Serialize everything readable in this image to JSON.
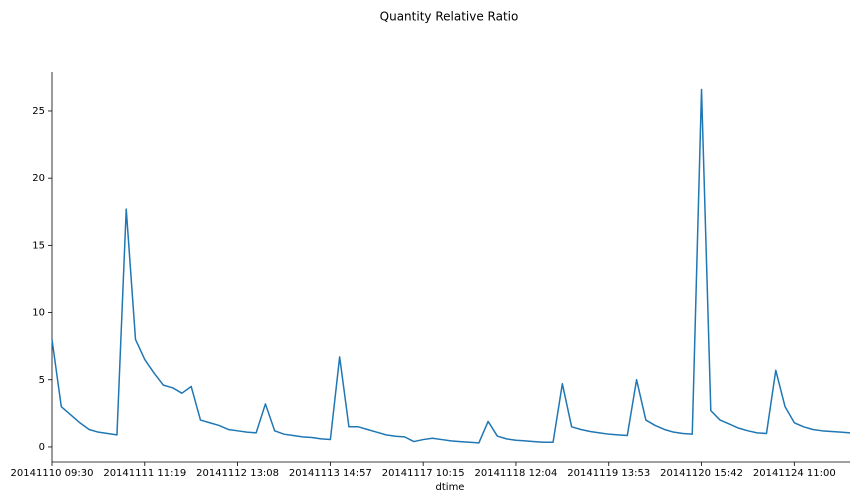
{
  "chart_data": {
    "type": "line",
    "title": "Quantity Relative Ratio",
    "x_label": "dtime",
    "categories": [
      "20141110 09:30",
      null,
      null,
      null,
      null,
      null,
      null,
      null,
      null,
      null,
      "20141111 11:19",
      null,
      null,
      null,
      null,
      null,
      null,
      null,
      null,
      null,
      "20141112 13:08",
      null,
      null,
      null,
      null,
      null,
      null,
      null,
      null,
      null,
      "20141113 14:57",
      null,
      null,
      null,
      null,
      null,
      null,
      null,
      null,
      null,
      "20141117 10:15",
      null,
      null,
      null,
      null,
      null,
      null,
      null,
      null,
      null,
      "20141118 12:04",
      null,
      null,
      null,
      null,
      null,
      null,
      null,
      null,
      null,
      "20141119 13:53",
      null,
      null,
      null,
      null,
      null,
      null,
      null,
      null,
      null,
      "20141120 15:42",
      null,
      null,
      null,
      null,
      null,
      null,
      null,
      null,
      null,
      "20141124 11:00",
      null,
      null,
      null,
      null,
      null,
      null
    ],
    "values": [
      8,
      3.0,
      2.4,
      1.8,
      1.3,
      1.1,
      1.0,
      0.9,
      17.7,
      8,
      6.5,
      5.5,
      4.6,
      4.4,
      4.0,
      4.5,
      2.0,
      1.8,
      1.6,
      1.3,
      1.2,
      1.1,
      1.05,
      3.2,
      1.2,
      0.95,
      0.85,
      0.75,
      0.7,
      0.6,
      0.55,
      6.7,
      1.5,
      1.5,
      1.3,
      1.1,
      0.9,
      0.8,
      0.75,
      0.4,
      0.55,
      0.65,
      0.55,
      0.45,
      0.4,
      0.35,
      0.3,
      1.9,
      0.8,
      0.6,
      0.5,
      0.45,
      0.4,
      0.35,
      0.35,
      4.7,
      1.5,
      1.3,
      1.15,
      1.05,
      0.95,
      0.9,
      0.85,
      5.0,
      2.0,
      1.6,
      1.3,
      1.1,
      1.0,
      0.95,
      26.6,
      2.7,
      2.0,
      1.7,
      1.4,
      1.2,
      1.05,
      1.0,
      5.7,
      3.0,
      1.8,
      1.5,
      1.3,
      1.2,
      1.15,
      1.1,
      1.05
    ],
    "color": "#1f77b4",
    "ylim": [
      -1.12,
      27.9
    ],
    "yticks": [
      0,
      5,
      10,
      15,
      20,
      25
    ],
    "grid": false
  }
}
